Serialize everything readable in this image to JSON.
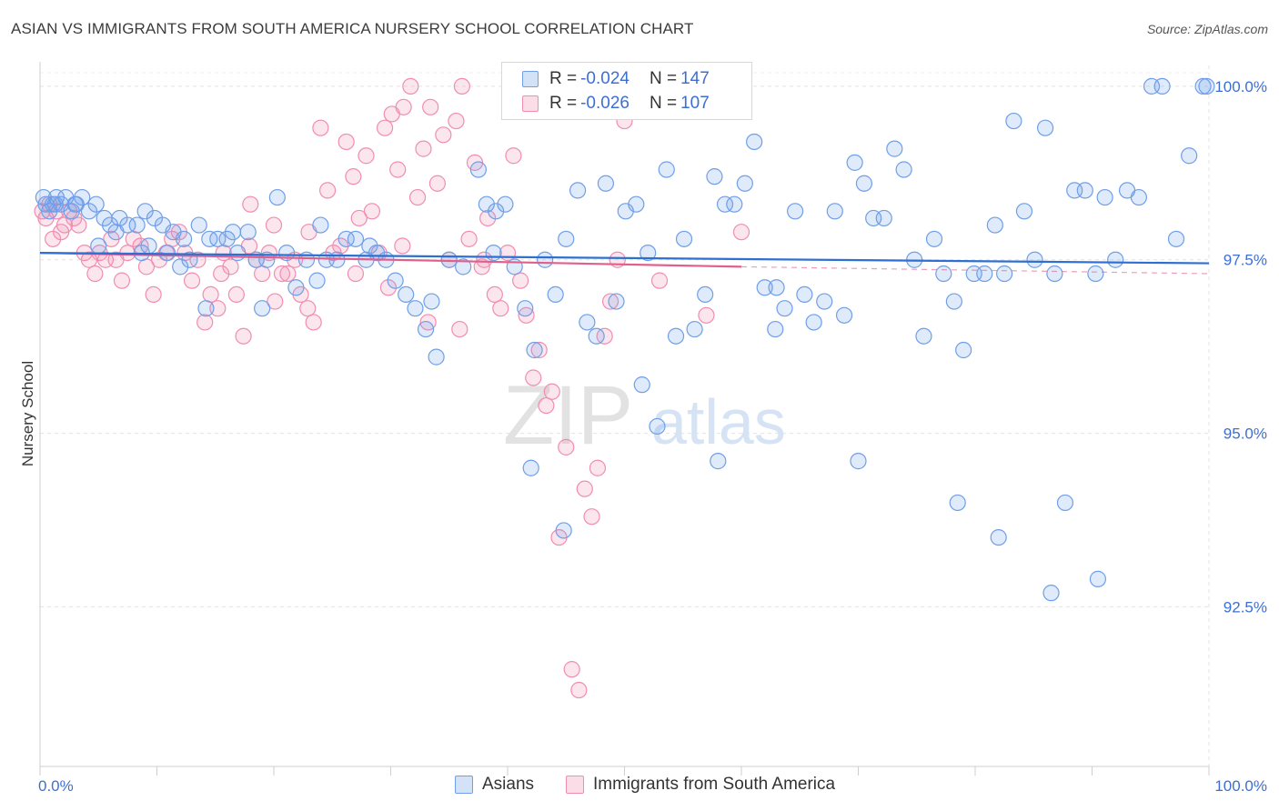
{
  "title": "ASIAN VS IMMIGRANTS FROM SOUTH AMERICA NURSERY SCHOOL CORRELATION CHART",
  "source": "Source: ZipAtlas.com",
  "watermark": {
    "zip": "ZIP",
    "atlas": "atlas"
  },
  "colors": {
    "blue": "#6f9fe8",
    "blue_fill": "rgba(111,159,232,0.22)",
    "blue_line": "#2f6fd1",
    "pink": "#f08db0",
    "pink_fill": "rgba(240,141,176,0.22)",
    "pink_line": "#e0608c",
    "axis_text": "#3d6fd3"
  },
  "legend_top": {
    "rows": [
      {
        "r_label": "R =",
        "r_value": "-0.024",
        "n_label": "N =",
        "n_value": "147"
      },
      {
        "r_label": "R =",
        "r_value": "-0.026",
        "n_label": "N =",
        "n_value": "107"
      }
    ]
  },
  "chart_data": {
    "type": "scatter",
    "title": "ASIAN VS IMMIGRANTS FROM SOUTH AMERICA NURSERY SCHOOL CORRELATION CHART",
    "xlabel": "",
    "ylabel": "Nursery School",
    "xlim": [
      0,
      100
    ],
    "ylim": [
      90.2,
      100.3
    ],
    "x_tick_labels": [
      "0.0%",
      "100.0%"
    ],
    "y_ticks": [
      92.5,
      95.0,
      97.5,
      100.0
    ],
    "y_tick_labels": [
      "92.5%",
      "95.0%",
      "97.5%",
      "100.0%"
    ],
    "grid": true,
    "legend_position": "bottom",
    "series": [
      {
        "name": "Asians",
        "trend": {
          "x": [
            0,
            100
          ],
          "y": [
            97.6,
            97.45
          ]
        },
        "points": [
          [
            0.3,
            98.4
          ],
          [
            0.5,
            98.3
          ],
          [
            0.8,
            98.2
          ],
          [
            1.1,
            98.3
          ],
          [
            1.4,
            98.4
          ],
          [
            1.8,
            98.3
          ],
          [
            2.2,
            98.4
          ],
          [
            2.7,
            98.2
          ],
          [
            3.1,
            98.3
          ],
          [
            3.6,
            98.4
          ],
          [
            4.2,
            98.2
          ],
          [
            4.8,
            98.3
          ],
          [
            5.5,
            98.1
          ],
          [
            6.0,
            98.0
          ],
          [
            6.8,
            98.1
          ],
          [
            7.5,
            98.0
          ],
          [
            8.3,
            98.0
          ],
          [
            9.0,
            98.2
          ],
          [
            9.8,
            98.1
          ],
          [
            10.5,
            98.0
          ],
          [
            11.4,
            97.9
          ],
          [
            12.3,
            97.8
          ],
          [
            5.0,
            97.7
          ],
          [
            8.7,
            97.6
          ],
          [
            10.9,
            97.6
          ],
          [
            12.8,
            97.5
          ],
          [
            13.6,
            98.0
          ],
          [
            14.5,
            97.8
          ],
          [
            15.2,
            97.8
          ],
          [
            16.0,
            97.8
          ],
          [
            16.9,
            97.6
          ],
          [
            17.8,
            97.9
          ],
          [
            18.5,
            97.5
          ],
          [
            19.4,
            97.5
          ],
          [
            20.3,
            98.4
          ],
          [
            21.1,
            97.6
          ],
          [
            21.9,
            97.1
          ],
          [
            22.8,
            97.5
          ],
          [
            23.7,
            97.2
          ],
          [
            24.5,
            97.5
          ],
          [
            25.4,
            97.5
          ],
          [
            26.2,
            97.8
          ],
          [
            27.0,
            97.8
          ],
          [
            27.9,
            97.5
          ],
          [
            28.8,
            97.6
          ],
          [
            29.6,
            97.5
          ],
          [
            30.4,
            97.2
          ],
          [
            31.3,
            97.0
          ],
          [
            32.1,
            96.8
          ],
          [
            33.0,
            96.5
          ],
          [
            33.9,
            96.1
          ],
          [
            35.0,
            97.5
          ],
          [
            36.2,
            97.4
          ],
          [
            37.5,
            98.8
          ],
          [
            38.2,
            98.3
          ],
          [
            39.0,
            98.2
          ],
          [
            39.8,
            98.3
          ],
          [
            40.6,
            97.4
          ],
          [
            41.5,
            96.8
          ],
          [
            42.3,
            96.2
          ],
          [
            43.2,
            97.5
          ],
          [
            44.1,
            97.0
          ],
          [
            45.0,
            97.8
          ],
          [
            46.0,
            98.5
          ],
          [
            46.8,
            96.6
          ],
          [
            47.6,
            96.4
          ],
          [
            48.4,
            98.6
          ],
          [
            49.3,
            96.9
          ],
          [
            50.1,
            98.2
          ],
          [
            51.0,
            98.3
          ],
          [
            52.0,
            97.6
          ],
          [
            52.8,
            95.1
          ],
          [
            53.6,
            98.8
          ],
          [
            54.4,
            96.4
          ],
          [
            55.1,
            97.8
          ],
          [
            56.0,
            96.5
          ],
          [
            56.9,
            97.0
          ],
          [
            57.7,
            98.7
          ],
          [
            58.6,
            98.3
          ],
          [
            59.4,
            98.3
          ],
          [
            60.3,
            98.6
          ],
          [
            61.1,
            99.2
          ],
          [
            62.0,
            97.1
          ],
          [
            62.9,
            96.5
          ],
          [
            63.7,
            96.8
          ],
          [
            64.6,
            98.2
          ],
          [
            65.4,
            97.0
          ],
          [
            66.2,
            96.6
          ],
          [
            67.1,
            96.9
          ],
          [
            68.0,
            98.2
          ],
          [
            68.8,
            96.7
          ],
          [
            69.7,
            98.9
          ],
          [
            70.5,
            98.6
          ],
          [
            71.3,
            98.1
          ],
          [
            72.2,
            98.1
          ],
          [
            73.1,
            99.1
          ],
          [
            73.9,
            98.8
          ],
          [
            74.8,
            97.5
          ],
          [
            75.6,
            96.4
          ],
          [
            76.5,
            97.8
          ],
          [
            77.3,
            97.3
          ],
          [
            78.2,
            96.9
          ],
          [
            79.0,
            96.2
          ],
          [
            79.9,
            97.3
          ],
          [
            80.8,
            97.3
          ],
          [
            81.7,
            98.0
          ],
          [
            82.5,
            97.3
          ],
          [
            83.3,
            99.5
          ],
          [
            84.2,
            98.2
          ],
          [
            85.1,
            97.5
          ],
          [
            86.0,
            99.4
          ],
          [
            86.8,
            97.3
          ],
          [
            87.7,
            94.0
          ],
          [
            88.5,
            98.5
          ],
          [
            89.4,
            98.5
          ],
          [
            90.3,
            97.3
          ],
          [
            91.1,
            98.4
          ],
          [
            92.0,
            97.5
          ],
          [
            93.0,
            98.5
          ],
          [
            94.0,
            98.4
          ],
          [
            95.1,
            100.0
          ],
          [
            96.0,
            100.0
          ],
          [
            97.2,
            97.8
          ],
          [
            98.3,
            99.0
          ],
          [
            99.5,
            100.0
          ],
          [
            99.8,
            100.0
          ],
          [
            1.3,
            98.3
          ],
          [
            3.0,
            98.3
          ],
          [
            6.5,
            97.9
          ],
          [
            9.3,
            97.7
          ],
          [
            12.0,
            97.4
          ],
          [
            14.2,
            96.8
          ],
          [
            16.5,
            97.9
          ],
          [
            19.0,
            96.8
          ],
          [
            24.0,
            98.0
          ],
          [
            28.2,
            97.7
          ],
          [
            33.5,
            96.9
          ],
          [
            38.8,
            97.6
          ],
          [
            44.8,
            93.6
          ],
          [
            51.5,
            95.7
          ],
          [
            58.0,
            94.6
          ],
          [
            63.0,
            97.1
          ],
          [
            70.0,
            94.6
          ],
          [
            78.5,
            94.0
          ],
          [
            82.0,
            93.5
          ],
          [
            86.5,
            92.7
          ],
          [
            90.5,
            92.9
          ],
          [
            42.0,
            94.5
          ]
        ]
      },
      {
        "name": "Immigrants from South America",
        "trend": {
          "x": [
            0,
            60
          ],
          "y": [
            97.6,
            97.4
          ]
        },
        "dashed_extension": {
          "x": [
            60,
            100
          ],
          "y": [
            97.4,
            97.3
          ]
        },
        "points": [
          [
            0.2,
            98.2
          ],
          [
            0.5,
            98.1
          ],
          [
            0.8,
            98.3
          ],
          [
            1.1,
            97.8
          ],
          [
            1.4,
            98.2
          ],
          [
            1.8,
            97.9
          ],
          [
            2.1,
            98.0
          ],
          [
            2.5,
            98.2
          ],
          [
            2.9,
            98.1
          ],
          [
            3.3,
            98.0
          ],
          [
            3.8,
            97.6
          ],
          [
            4.2,
            97.5
          ],
          [
            4.7,
            97.3
          ],
          [
            5.1,
            97.6
          ],
          [
            5.6,
            97.5
          ],
          [
            6.1,
            97.8
          ],
          [
            6.5,
            97.5
          ],
          [
            7.0,
            97.2
          ],
          [
            7.5,
            97.6
          ],
          [
            8.0,
            97.8
          ],
          [
            8.6,
            97.7
          ],
          [
            9.1,
            97.4
          ],
          [
            9.7,
            97.0
          ],
          [
            10.2,
            97.5
          ],
          [
            10.8,
            97.6
          ],
          [
            11.3,
            97.8
          ],
          [
            11.9,
            97.9
          ],
          [
            12.4,
            97.6
          ],
          [
            13.0,
            97.2
          ],
          [
            13.5,
            97.5
          ],
          [
            14.1,
            96.6
          ],
          [
            14.6,
            97.0
          ],
          [
            15.2,
            96.8
          ],
          [
            15.7,
            97.6
          ],
          [
            16.3,
            97.4
          ],
          [
            16.8,
            97.0
          ],
          [
            17.4,
            96.4
          ],
          [
            17.9,
            97.7
          ],
          [
            18.5,
            97.5
          ],
          [
            19.0,
            97.3
          ],
          [
            19.6,
            97.6
          ],
          [
            20.1,
            96.9
          ],
          [
            20.7,
            97.3
          ],
          [
            21.2,
            97.3
          ],
          [
            21.8,
            97.5
          ],
          [
            22.3,
            97.0
          ],
          [
            22.9,
            96.8
          ],
          [
            23.4,
            96.6
          ],
          [
            24.0,
            99.4
          ],
          [
            24.6,
            98.5
          ],
          [
            25.1,
            97.6
          ],
          [
            25.7,
            97.7
          ],
          [
            26.2,
            99.2
          ],
          [
            26.8,
            98.7
          ],
          [
            27.3,
            98.1
          ],
          [
            27.9,
            99.0
          ],
          [
            28.4,
            98.2
          ],
          [
            29.0,
            97.6
          ],
          [
            29.5,
            99.4
          ],
          [
            30.1,
            99.6
          ],
          [
            30.6,
            98.8
          ],
          [
            31.1,
            99.7
          ],
          [
            31.7,
            100.0
          ],
          [
            32.3,
            98.4
          ],
          [
            32.8,
            99.1
          ],
          [
            33.4,
            99.7
          ],
          [
            34.0,
            98.6
          ],
          [
            34.5,
            99.3
          ],
          [
            35.0,
            97.5
          ],
          [
            35.6,
            99.5
          ],
          [
            36.1,
            100.0
          ],
          [
            36.7,
            97.8
          ],
          [
            37.2,
            98.9
          ],
          [
            37.8,
            97.4
          ],
          [
            38.3,
            98.1
          ],
          [
            38.9,
            97.0
          ],
          [
            39.4,
            96.8
          ],
          [
            40.0,
            97.6
          ],
          [
            40.5,
            99.0
          ],
          [
            41.1,
            97.2
          ],
          [
            41.6,
            96.7
          ],
          [
            42.2,
            95.8
          ],
          [
            42.7,
            96.2
          ],
          [
            43.3,
            95.4
          ],
          [
            43.8,
            95.6
          ],
          [
            44.4,
            93.5
          ],
          [
            45.0,
            94.8
          ],
          [
            45.5,
            91.6
          ],
          [
            46.1,
            91.3
          ],
          [
            46.6,
            94.2
          ],
          [
            47.2,
            93.8
          ],
          [
            47.7,
            94.5
          ],
          [
            48.3,
            96.4
          ],
          [
            48.8,
            96.9
          ],
          [
            49.4,
            97.5
          ],
          [
            50.0,
            99.5
          ],
          [
            53.0,
            97.2
          ],
          [
            57.0,
            96.7
          ],
          [
            60.0,
            97.9
          ],
          [
            27.0,
            97.3
          ],
          [
            29.8,
            97.1
          ],
          [
            33.2,
            96.6
          ],
          [
            31.0,
            97.7
          ],
          [
            35.9,
            96.5
          ],
          [
            38.0,
            97.5
          ],
          [
            23.0,
            97.9
          ],
          [
            20.0,
            98.0
          ],
          [
            18.0,
            98.3
          ],
          [
            15.5,
            97.3
          ]
        ]
      }
    ]
  },
  "legend_bottom": {
    "items": [
      "Asians",
      "Immigrants from South America"
    ]
  }
}
